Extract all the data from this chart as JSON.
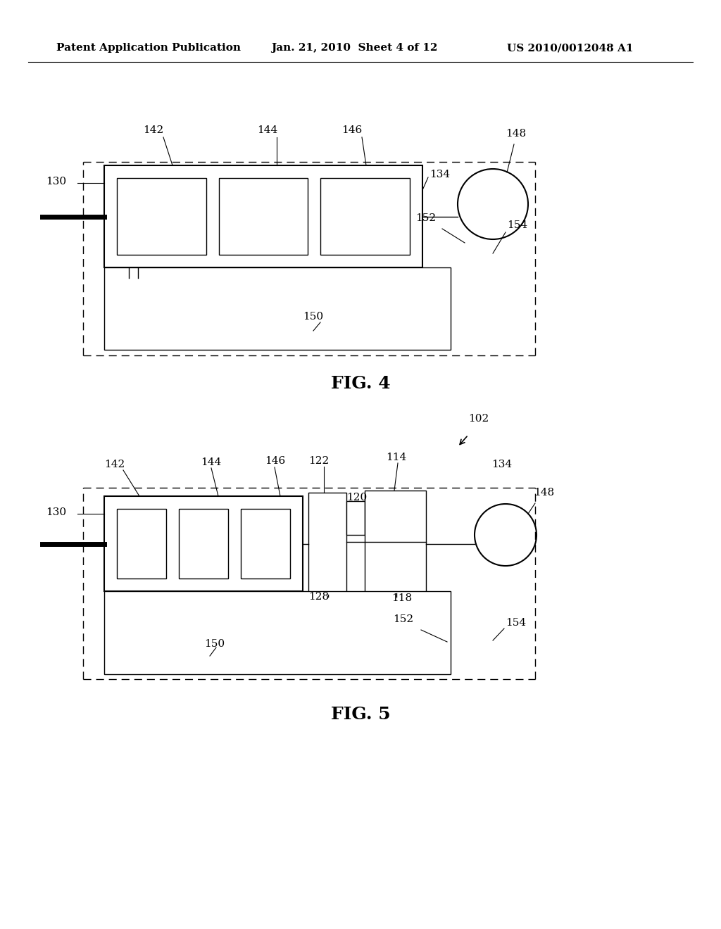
{
  "header_left": "Patent Application Publication",
  "header_center": "Jan. 21, 2010  Sheet 4 of 12",
  "header_right": "US 2010/0012048 A1",
  "fig4_caption": "FIG. 4",
  "fig5_caption": "FIG. 5",
  "bg_color": "#ffffff",
  "line_color": "#000000"
}
